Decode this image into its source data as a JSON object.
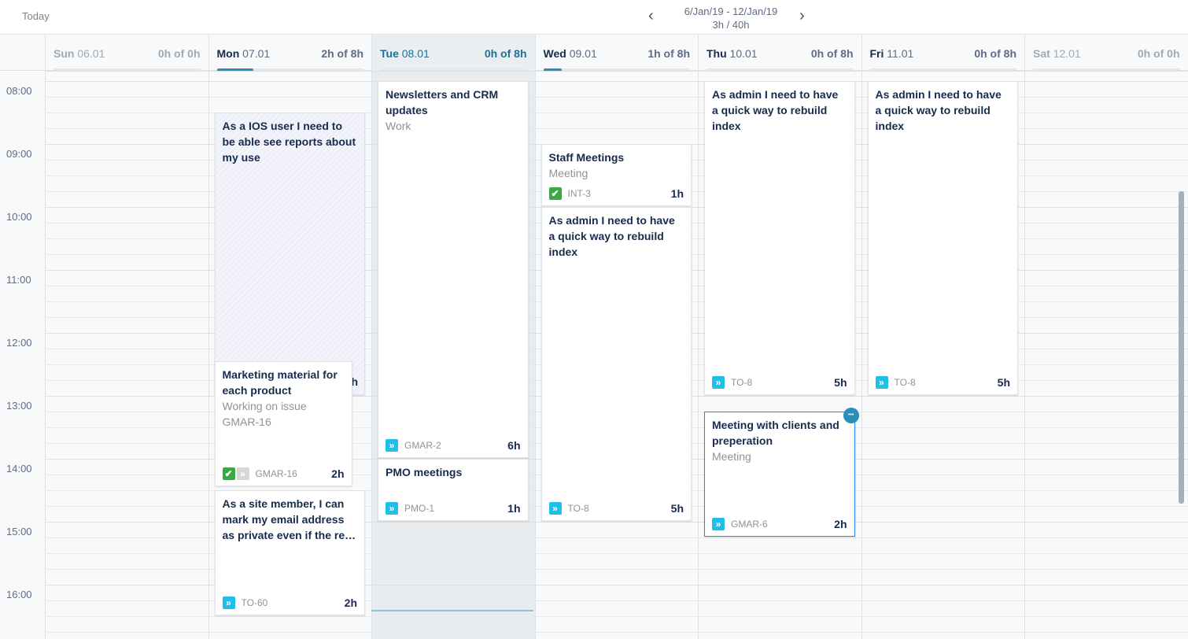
{
  "toolbar": {
    "today_label": "Today",
    "range": "6/Jan/19 - 12/Jan/19",
    "total": "3h / 40h",
    "prev_icon": "chevron-left-icon",
    "next_icon": "chevron-right-icon"
  },
  "colors": {
    "accent": "#2a8fb8",
    "task_icon": "#1ec0ea",
    "done_icon": "#3aa845",
    "selected_border": "#2684ff"
  },
  "hours": [
    "08:00",
    "09:00",
    "10:00",
    "11:00",
    "12:00",
    "13:00",
    "14:00",
    "15:00",
    "16:00"
  ],
  "days": [
    {
      "name": "Sun",
      "date": "06.01",
      "hours": "0h of 0h",
      "progress": 0,
      "state": "weekend"
    },
    {
      "name": "Mon",
      "date": "07.01",
      "hours": "2h of 8h",
      "progress": 25,
      "state": "normal"
    },
    {
      "name": "Tue",
      "date": "08.01",
      "hours": "0h of 8h",
      "progress": 0,
      "state": "today"
    },
    {
      "name": "Wed",
      "date": "09.01",
      "hours": "1h of 8h",
      "progress": 12.5,
      "state": "normal"
    },
    {
      "name": "Thu",
      "date": "10.01",
      "hours": "0h of 8h",
      "progress": 0,
      "state": "normal"
    },
    {
      "name": "Fri",
      "date": "11.01",
      "hours": "0h of 8h",
      "progress": 0,
      "state": "normal"
    },
    {
      "name": "Sat",
      "date": "12.01",
      "hours": "0h of 0h",
      "progress": 0,
      "state": "weekend"
    }
  ],
  "events": [
    {
      "day": 1,
      "start": 8.5,
      "duration": 4.5,
      "title": "As a IOS user I need to be able see reports about my use",
      "style": "hatched",
      "partial_duration": "h"
    },
    {
      "day": 1,
      "start": 12.45,
      "duration": 2,
      "title": "Marketing material for each product",
      "subtitle": [
        "Working on issue",
        "GMAR-16"
      ],
      "icons": [
        "check-icon",
        "grey-chevrons-icon"
      ],
      "key": "GMAR-16",
      "dur": "2h",
      "narrow": true
    },
    {
      "day": 1,
      "start": 14.5,
      "duration": 2,
      "title": "As a site member, I can mark my email address as private even if the re…",
      "icons": [
        "task-chevrons-icon"
      ],
      "key": "TO-60",
      "dur": "2h"
    },
    {
      "day": 2,
      "start": 8,
      "duration": 6,
      "title": "Newsletters and CRM updates",
      "subtitle": [
        "Work"
      ],
      "icons": [
        "task-chevrons-icon"
      ],
      "key": "GMAR-2",
      "dur": "6h"
    },
    {
      "day": 2,
      "start": 14,
      "duration": 1,
      "title": "PMO meetings",
      "icons": [
        "task-chevrons-icon"
      ],
      "key": "PMO-1",
      "dur": "1h"
    },
    {
      "day": 3,
      "start": 9,
      "duration": 1,
      "title": "Staff Meetings",
      "subtitle": [
        "Meeting"
      ],
      "icons": [
        "check-icon"
      ],
      "key": "INT-3",
      "dur": "1h"
    },
    {
      "day": 3,
      "start": 10,
      "duration": 5,
      "title": "As admin I need to have a quick way to rebuild index",
      "icons": [
        "task-chevrons-icon"
      ],
      "key": "TO-8",
      "dur": "5h"
    },
    {
      "day": 4,
      "start": 8,
      "duration": 5,
      "title": "As admin I need to have a quick way to rebuild index",
      "icons": [
        "task-chevrons-icon"
      ],
      "key": "TO-8",
      "dur": "5h"
    },
    {
      "day": 4,
      "start": 13.25,
      "duration": 2,
      "title": "Meeting with clients and preperation",
      "subtitle": [
        "Meeting"
      ],
      "icons": [
        "task-chevrons-icon"
      ],
      "key": "GMAR-6",
      "dur": "2h",
      "selected": true,
      "more_icon": "more-dots-icon"
    },
    {
      "day": 5,
      "start": 8,
      "duration": 5,
      "title": "As admin I need to have a quick way to rebuild index",
      "icons": [
        "task-chevrons-icon"
      ],
      "key": "TO-8",
      "dur": "5h"
    }
  ],
  "now_time": 16.4
}
